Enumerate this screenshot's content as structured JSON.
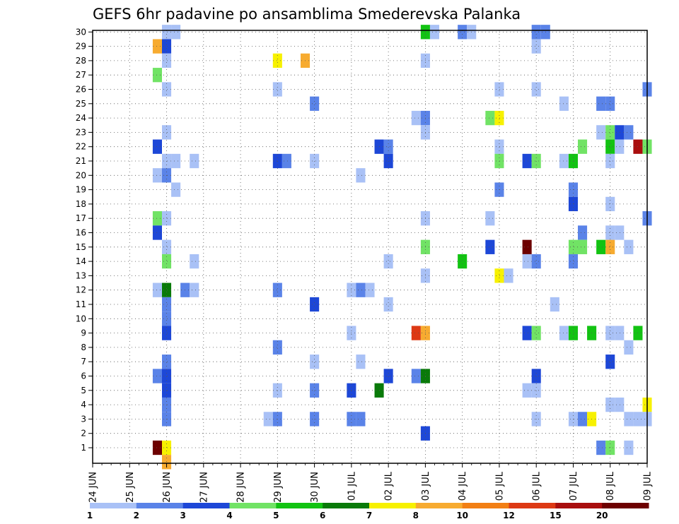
{
  "chart_data": {
    "type": "heatmap",
    "title": "GEFS 6hr padavine po ansamblima Smederevska Palanka",
    "ylim": [
      1,
      30
    ],
    "y_ticks": [
      "1",
      "2",
      "3",
      "4",
      "5",
      "6",
      "7",
      "8",
      "9",
      "10",
      "11",
      "12",
      "13",
      "14",
      "15",
      "16",
      "17",
      "18",
      "19",
      "20",
      "21",
      "22",
      "23",
      "24",
      "25",
      "26",
      "27",
      "28",
      "29",
      "30"
    ],
    "x_ticks": [
      "24 JUN",
      "25 JUN",
      "26 JUN",
      "27 JUN",
      "28 JUN",
      "29 JUN",
      "30 JUN",
      "01 JUL",
      "02 JUL",
      "03 JUL",
      "04 JUL",
      "05 JUL",
      "06 JUL",
      "07 JUL",
      "08 JUL",
      "09 JUL"
    ],
    "grid": true,
    "legend": {
      "placement": "bottom",
      "levels": [
        "1",
        "2",
        "3",
        "4",
        "5",
        "6",
        "7",
        "8",
        "10",
        "12",
        "15",
        "20"
      ],
      "colors": [
        "#a9c1f6",
        "#5a83e8",
        "#1d47d7",
        "#71e365",
        "#12c312",
        "#097a09",
        "#f7f100",
        "#f7ab30",
        "#f27f14",
        "#dd3914",
        "#a90e0e",
        "#6d0000"
      ]
    },
    "cells": [
      {
        "x": "26 JUN 00",
        "y": 30,
        "value": 1.5
      },
      {
        "x": "26 JUN 06",
        "y": 30,
        "value": 1.5
      },
      {
        "x": "03 JUL 00",
        "y": 30,
        "value": 5.5
      },
      {
        "x": "03 JUL 06",
        "y": 30,
        "value": 1.5
      },
      {
        "x": "04 JUL 00",
        "y": 30,
        "value": 2.5
      },
      {
        "x": "04 JUL 06",
        "y": 30,
        "value": 1.5
      },
      {
        "x": "06 JUL 00",
        "y": 30,
        "value": 2.5
      },
      {
        "x": "06 JUL 06",
        "y": 30,
        "value": 2.5
      },
      {
        "x": "25 JUN 18",
        "y": 29,
        "value": 9
      },
      {
        "x": "26 JUN 00",
        "y": 29,
        "value": 3.5
      },
      {
        "x": "06 JUL 00",
        "y": 29,
        "value": 1.5
      },
      {
        "x": "26 JUN 00",
        "y": 28,
        "value": 1.5
      },
      {
        "x": "29 JUN 00",
        "y": 28,
        "value": 7.5
      },
      {
        "x": "29 JUN 18",
        "y": 28,
        "value": 9
      },
      {
        "x": "03 JUL 00",
        "y": 28,
        "value": 1.5
      },
      {
        "x": "25 JUN 18",
        "y": 27,
        "value": 4.5
      },
      {
        "x": "26 JUN 00",
        "y": 26,
        "value": 1.5
      },
      {
        "x": "29 JUN 00",
        "y": 26,
        "value": 1.5
      },
      {
        "x": "05 JUL 00",
        "y": 26,
        "value": 1.5
      },
      {
        "x": "06 JUL 00",
        "y": 26,
        "value": 1.5
      },
      {
        "x": "09 JUL 00",
        "y": 26,
        "value": 2.5
      },
      {
        "x": "30 JUN 00",
        "y": 25,
        "value": 2.5
      },
      {
        "x": "06 JUL 18",
        "y": 25,
        "value": 1.5
      },
      {
        "x": "07 JUL 18",
        "y": 25,
        "value": 2.5
      },
      {
        "x": "08 JUL 00",
        "y": 25,
        "value": 2.5
      },
      {
        "x": "02 JUL 18",
        "y": 24,
        "value": 1.5
      },
      {
        "x": "03 JUL 00",
        "y": 24,
        "value": 2.5
      },
      {
        "x": "04 JUL 18",
        "y": 24,
        "value": 4.5
      },
      {
        "x": "05 JUL 00",
        "y": 24,
        "value": 7.5
      },
      {
        "x": "26 JUN 00",
        "y": 23,
        "value": 1.5
      },
      {
        "x": "03 JUL 00",
        "y": 23,
        "value": 1.5
      },
      {
        "x": "07 JUL 18",
        "y": 23,
        "value": 1.5
      },
      {
        "x": "08 JUL 00",
        "y": 23,
        "value": 4.5
      },
      {
        "x": "08 JUL 06",
        "y": 23,
        "value": 3.5
      },
      {
        "x": "08 JUL 12",
        "y": 23,
        "value": 2.5
      },
      {
        "x": "25 JUN 18",
        "y": 22,
        "value": 3.5
      },
      {
        "x": "01 JUL 18",
        "y": 22,
        "value": 3.5
      },
      {
        "x": "02 JUL 00",
        "y": 22,
        "value": 2.5
      },
      {
        "x": "05 JUL 00",
        "y": 22,
        "value": 1.5
      },
      {
        "x": "07 JUL 06",
        "y": 22,
        "value": 4.5
      },
      {
        "x": "08 JUL 00",
        "y": 22,
        "value": 5.5
      },
      {
        "x": "08 JUL 06",
        "y": 22,
        "value": 1.5
      },
      {
        "x": "08 JUL 18",
        "y": 22,
        "value": 17
      },
      {
        "x": "09 JUL 00",
        "y": 22,
        "value": 4.5
      },
      {
        "x": "26 JUN 00",
        "y": 21,
        "value": 1.5
      },
      {
        "x": "26 JUN 06",
        "y": 21,
        "value": 1.5
      },
      {
        "x": "26 JUN 18",
        "y": 21,
        "value": 1.5
      },
      {
        "x": "29 JUN 00",
        "y": 21,
        "value": 3.5
      },
      {
        "x": "29 JUN 06",
        "y": 21,
        "value": 2.5
      },
      {
        "x": "30 JUN 00",
        "y": 21,
        "value": 1.5
      },
      {
        "x": "02 JUL 00",
        "y": 21,
        "value": 3.5
      },
      {
        "x": "05 JUL 00",
        "y": 21,
        "value": 4.5
      },
      {
        "x": "05 JUL 18",
        "y": 21,
        "value": 3.5
      },
      {
        "x": "06 JUL 00",
        "y": 21,
        "value": 4.5
      },
      {
        "x": "06 JUL 18",
        "y": 21,
        "value": 1.5
      },
      {
        "x": "07 JUL 00",
        "y": 21,
        "value": 5.5
      },
      {
        "x": "08 JUL 00",
        "y": 21,
        "value": 1.5
      },
      {
        "x": "25 JUN 18",
        "y": 20,
        "value": 1.5
      },
      {
        "x": "26 JUN 00",
        "y": 20,
        "value": 2.5
      },
      {
        "x": "01 JUL 06",
        "y": 20,
        "value": 1.5
      },
      {
        "x": "26 JUN 06",
        "y": 19,
        "value": 1.5
      },
      {
        "x": "05 JUL 00",
        "y": 19,
        "value": 2.5
      },
      {
        "x": "07 JUL 00",
        "y": 19,
        "value": 2.5
      },
      {
        "x": "07 JUL 00",
        "y": 18,
        "value": 3.5
      },
      {
        "x": "08 JUL 00",
        "y": 18,
        "value": 1.5
      },
      {
        "x": "25 JUN 18",
        "y": 17,
        "value": 4.5
      },
      {
        "x": "26 JUN 00",
        "y": 17,
        "value": 1.5
      },
      {
        "x": "03 JUL 00",
        "y": 17,
        "value": 1.5
      },
      {
        "x": "04 JUL 18",
        "y": 17,
        "value": 1.5
      },
      {
        "x": "09 JUL 00",
        "y": 17,
        "value": 2.5
      },
      {
        "x": "25 JUN 18",
        "y": 16,
        "value": 3.5
      },
      {
        "x": "07 JUL 06",
        "y": 16,
        "value": 2.5
      },
      {
        "x": "08 JUL 00",
        "y": 16,
        "value": 1.5
      },
      {
        "x": "08 JUL 06",
        "y": 16,
        "value": 1.5
      },
      {
        "x": "26 JUN 00",
        "y": 15,
        "value": 1.5
      },
      {
        "x": "03 JUL 00",
        "y": 15,
        "value": 4.5
      },
      {
        "x": "04 JUL 18",
        "y": 15,
        "value": 3.5
      },
      {
        "x": "05 JUL 18",
        "y": 15,
        "value": 22
      },
      {
        "x": "07 JUL 00",
        "y": 15,
        "value": 4.5
      },
      {
        "x": "07 JUL 06",
        "y": 15,
        "value": 4.5
      },
      {
        "x": "07 JUL 18",
        "y": 15,
        "value": 5.5
      },
      {
        "x": "08 JUL 00",
        "y": 15,
        "value": 9
      },
      {
        "x": "08 JUL 12",
        "y": 15,
        "value": 1.5
      },
      {
        "x": "26 JUN 00",
        "y": 14,
        "value": 4.5
      },
      {
        "x": "26 JUN 18",
        "y": 14,
        "value": 1.5
      },
      {
        "x": "02 JUL 00",
        "y": 14,
        "value": 1.5
      },
      {
        "x": "04 JUL 00",
        "y": 14,
        "value": 5.5
      },
      {
        "x": "05 JUL 18",
        "y": 14,
        "value": 1.5
      },
      {
        "x": "06 JUL 00",
        "y": 14,
        "value": 2.5
      },
      {
        "x": "07 JUL 00",
        "y": 14,
        "value": 2.5
      },
      {
        "x": "03 JUL 00",
        "y": 13,
        "value": 1.5
      },
      {
        "x": "05 JUL 00",
        "y": 13,
        "value": 7.5
      },
      {
        "x": "05 JUL 06",
        "y": 13,
        "value": 1.5
      },
      {
        "x": "25 JUN 18",
        "y": 12,
        "value": 1.5
      },
      {
        "x": "26 JUN 00",
        "y": 12,
        "value": 6.5
      },
      {
        "x": "26 JUN 12",
        "y": 12,
        "value": 2.5
      },
      {
        "x": "26 JUN 18",
        "y": 12,
        "value": 1.5
      },
      {
        "x": "29 JUN 00",
        "y": 12,
        "value": 2.5
      },
      {
        "x": "01 JUL 00",
        "y": 12,
        "value": 1.5
      },
      {
        "x": "01 JUL 06",
        "y": 12,
        "value": 2.5
      },
      {
        "x": "01 JUL 12",
        "y": 12,
        "value": 1.5
      },
      {
        "x": "26 JUN 00",
        "y": 11,
        "value": 2.5
      },
      {
        "x": "30 JUN 00",
        "y": 11,
        "value": 3.5
      },
      {
        "x": "02 JUL 00",
        "y": 11,
        "value": 1.5
      },
      {
        "x": "06 JUL 12",
        "y": 11,
        "value": 1.5
      },
      {
        "x": "26 JUN 00",
        "y": 10,
        "value": 2.5
      },
      {
        "x": "26 JUN 00",
        "y": 9,
        "value": 3.5
      },
      {
        "x": "01 JUL 00",
        "y": 9,
        "value": 1.5
      },
      {
        "x": "02 JUL 18",
        "y": 9,
        "value": 13
      },
      {
        "x": "03 JUL 00",
        "y": 9,
        "value": 9
      },
      {
        "x": "05 JUL 18",
        "y": 9,
        "value": 3.5
      },
      {
        "x": "06 JUL 00",
        "y": 9,
        "value": 4.5
      },
      {
        "x": "06 JUL 18",
        "y": 9,
        "value": 1.5
      },
      {
        "x": "07 JUL 00",
        "y": 9,
        "value": 5.5
      },
      {
        "x": "07 JUL 12",
        "y": 9,
        "value": 5.5
      },
      {
        "x": "08 JUL 00",
        "y": 9,
        "value": 1.5
      },
      {
        "x": "08 JUL 06",
        "y": 9,
        "value": 1.5
      },
      {
        "x": "08 JUL 18",
        "y": 9,
        "value": 5.5
      },
      {
        "x": "29 JUN 00",
        "y": 8,
        "value": 2.5
      },
      {
        "x": "08 JUL 12",
        "y": 8,
        "value": 1.5
      },
      {
        "x": "26 JUN 00",
        "y": 7,
        "value": 2.5
      },
      {
        "x": "30 JUN 00",
        "y": 7,
        "value": 1.5
      },
      {
        "x": "01 JUL 06",
        "y": 7,
        "value": 1.5
      },
      {
        "x": "08 JUL 00",
        "y": 7,
        "value": 3.5
      },
      {
        "x": "25 JUN 18",
        "y": 6,
        "value": 2.5
      },
      {
        "x": "26 JUN 00",
        "y": 6,
        "value": 3.5
      },
      {
        "x": "02 JUL 00",
        "y": 6,
        "value": 3.5
      },
      {
        "x": "02 JUL 18",
        "y": 6,
        "value": 2.5
      },
      {
        "x": "03 JUL 00",
        "y": 6,
        "value": 6.5
      },
      {
        "x": "06 JUL 00",
        "y": 6,
        "value": 3.5
      },
      {
        "x": "26 JUN 00",
        "y": 5,
        "value": 3.5
      },
      {
        "x": "29 JUN 00",
        "y": 5,
        "value": 1.5
      },
      {
        "x": "30 JUN 00",
        "y": 5,
        "value": 2.5
      },
      {
        "x": "01 JUL 00",
        "y": 5,
        "value": 3.5
      },
      {
        "x": "01 JUL 18",
        "y": 5,
        "value": 6.5
      },
      {
        "x": "05 JUL 18",
        "y": 5,
        "value": 1.5
      },
      {
        "x": "06 JUL 00",
        "y": 5,
        "value": 1.5
      },
      {
        "x": "26 JUN 00",
        "y": 4,
        "value": 2.5
      },
      {
        "x": "08 JUL 00",
        "y": 4,
        "value": 1.5
      },
      {
        "x": "08 JUL 06",
        "y": 4,
        "value": 1.5
      },
      {
        "x": "09 JUL 00",
        "y": 4,
        "value": 7.5
      },
      {
        "x": "26 JUN 00",
        "y": 3,
        "value": 2.5
      },
      {
        "x": "28 JUN 18",
        "y": 3,
        "value": 1.5
      },
      {
        "x": "29 JUN 00",
        "y": 3,
        "value": 2.5
      },
      {
        "x": "30 JUN 00",
        "y": 3,
        "value": 2.5
      },
      {
        "x": "01 JUL 00",
        "y": 3,
        "value": 2.5
      },
      {
        "x": "01 JUL 06",
        "y": 3,
        "value": 2.5
      },
      {
        "x": "06 JUL 00",
        "y": 3,
        "value": 1.5
      },
      {
        "x": "07 JUL 00",
        "y": 3,
        "value": 1.5
      },
      {
        "x": "07 JUL 06",
        "y": 3,
        "value": 2.5
      },
      {
        "x": "07 JUL 12",
        "y": 3,
        "value": 7.5
      },
      {
        "x": "08 JUL 12",
        "y": 3,
        "value": 1.5
      },
      {
        "x": "08 JUL 18",
        "y": 3,
        "value": 1.5
      },
      {
        "x": "09 JUL 00",
        "y": 3,
        "value": 1.5
      },
      {
        "x": "03 JUL 00",
        "y": 2,
        "value": 3.5
      },
      {
        "x": "25 JUN 18",
        "y": 1,
        "value": 22
      },
      {
        "x": "26 JUN 00",
        "y": 1,
        "value": 7.5
      },
      {
        "x": "07 JUL 18",
        "y": 1,
        "value": 2.5
      },
      {
        "x": "08 JUL 00",
        "y": 1,
        "value": 4.5
      },
      {
        "x": "08 JUL 12",
        "y": 1,
        "value": 1.5
      },
      {
        "x": "26 JUN 00",
        "y": 0,
        "value": 9
      }
    ]
  }
}
